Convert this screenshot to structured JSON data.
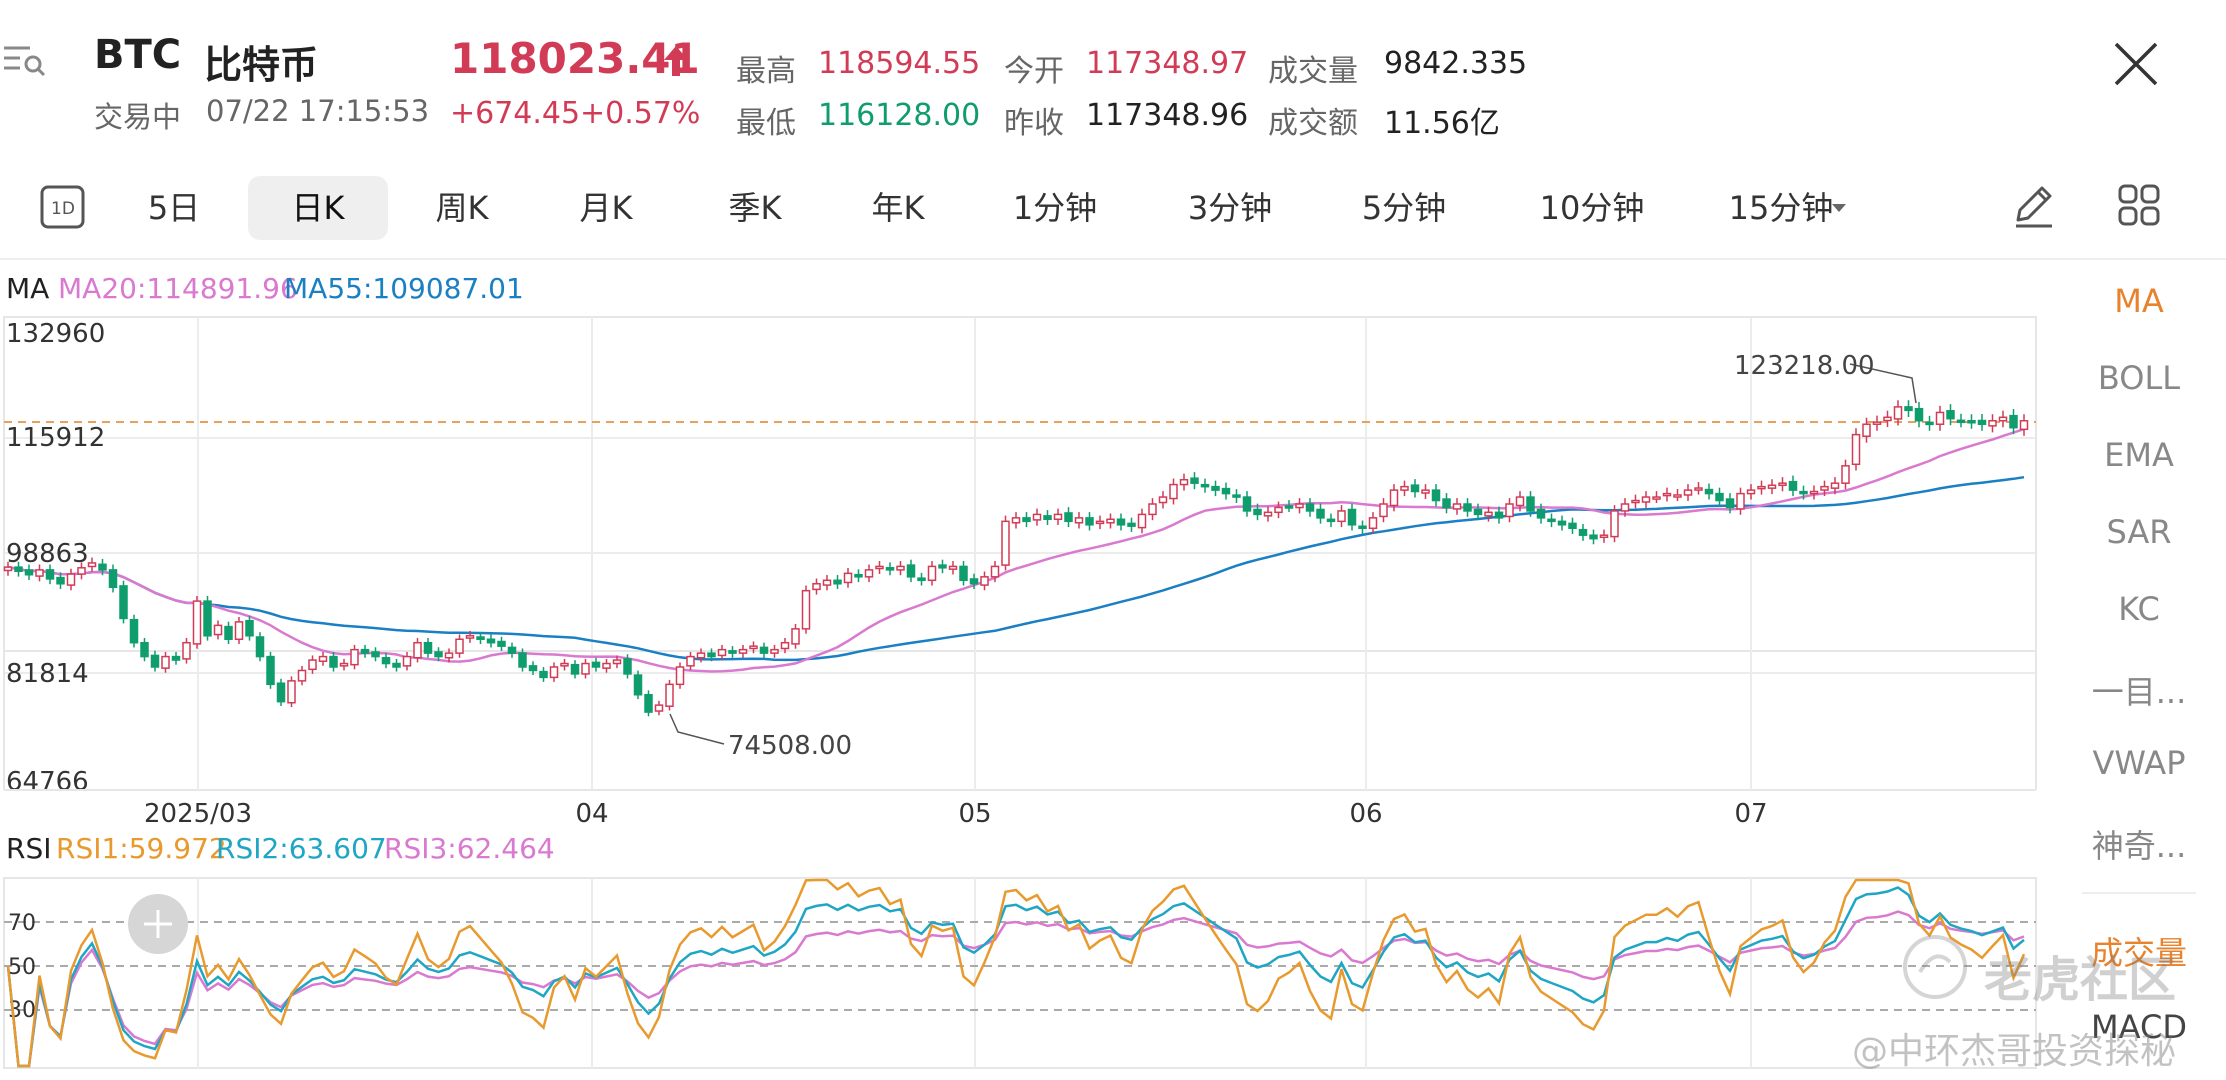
{
  "header": {
    "symbol": "BTC",
    "name": "比特币",
    "status": "交易中",
    "datetime": "07/22 17:15:53",
    "price": "118023.41",
    "change": "+674.45",
    "change_pct": "+0.57%",
    "stats": {
      "high_label": "最高",
      "high": "118594.55",
      "low_label": "最低",
      "low": "116128.00",
      "open_label": "今开",
      "open": "117348.97",
      "prev_close_label": "昨收",
      "prev_close": "117348.96",
      "volume_label": "成交量",
      "volume": "9842.335",
      "turnover_label": "成交额",
      "turnover": "11.56亿"
    }
  },
  "periods": {
    "icon_label": "1D",
    "items": [
      "5日",
      "日K",
      "周K",
      "月K",
      "季K",
      "年K",
      "1分钟",
      "3分钟",
      "5分钟",
      "10分钟",
      "15分钟"
    ],
    "active": "日K"
  },
  "indicators_side": {
    "items": [
      "MA",
      "BOLL",
      "EMA",
      "SAR",
      "KC",
      "一目...",
      "VWAP",
      "神奇...",
      "成交量",
      "MACD"
    ],
    "active": "MA"
  },
  "colors": {
    "up": "#d23b55",
    "down": "#0f9d6e",
    "ma20": "#d979d0",
    "ma55": "#1b7fc4",
    "rsi1": "#e89a2e",
    "rsi2": "#1fa6c4",
    "rsi3": "#d979d0",
    "side_active": "#e8832d"
  },
  "main_chart": {
    "legend_title": "MA",
    "ma20_label": "MA20:114891.96",
    "ma55_label": "MA55:109087.01",
    "y_ticks": [
      "132960",
      "115912",
      "98863",
      "81814",
      "64766"
    ],
    "x_labels": [
      "2025/03",
      "04",
      "05",
      "06",
      "07"
    ],
    "high_annotation": "123218.00",
    "low_annotation": "74508.00"
  },
  "rsi_chart": {
    "legend_title": "RSI",
    "rsi1_label": "RSI1:59.972",
    "rsi2_label": "RSI2:63.607",
    "rsi3_label": "RSI3:62.464",
    "y_ticks": [
      "70",
      "50",
      "30"
    ]
  },
  "watermark": {
    "brand": "老虎社区",
    "author": "@中环杰哥投资探秘"
  },
  "chart_data": {
    "type": "candlestick",
    "title": "",
    "ylim": [
      64766,
      132960
    ],
    "close_series": [
      96900,
      96300,
      95800,
      96500,
      95200,
      94500,
      95900,
      96800,
      97500,
      96500,
      94000,
      89500,
      86000,
      84000,
      82500,
      84000,
      83500,
      86000,
      92000,
      87000,
      88500,
      86500,
      89000,
      87000,
      84000,
      80000,
      77500,
      80500,
      82000,
      83500,
      84000,
      82500,
      83000,
      85000,
      84500,
      84000,
      83000,
      82500,
      84000,
      86000,
      84500,
      84000,
      84500,
      86500,
      87000,
      86500,
      86000,
      85500,
      84500,
      82500,
      82000,
      81000,
      82500,
      83000,
      81500,
      83000,
      82500,
      83000,
      83500,
      81500,
      78500,
      76000,
      77000,
      80000,
      82500,
      84000,
      84500,
      84000,
      85000,
      84500,
      85000,
      85500,
      84500,
      85000,
      86000,
      88000,
      93500,
      94500,
      95000,
      94500,
      96000,
      95500,
      96500,
      97000,
      96500,
      97000,
      95500,
      95000,
      97000,
      96800,
      97000,
      95000,
      94500,
      95500,
      97000,
      103500,
      104000,
      103500,
      104500,
      103800,
      104500,
      103500,
      104000,
      103000,
      103500,
      103800,
      103000,
      102800,
      104500,
      106000,
      107000,
      108800,
      109500,
      109000,
      108500,
      108000,
      107500,
      107000,
      105000,
      104500,
      104800,
      105500,
      105700,
      106000,
      105000,
      104000,
      103500,
      105000,
      103000,
      102500,
      104000,
      106000,
      108000,
      108500,
      107800,
      108000,
      106500,
      105500,
      106000,
      105000,
      104500,
      104800,
      104000,
      106000,
      107000,
      105000,
      104000,
      103500,
      103000,
      102500,
      101500,
      101000,
      101500,
      105000,
      106000,
      106500,
      107000,
      107000,
      107500,
      107300,
      108000,
      108300,
      107500,
      106500,
      105500,
      107500,
      108000,
      108500,
      108700,
      109000,
      108000,
      107500,
      107800,
      108500,
      109000,
      111500,
      116000,
      117500,
      117800,
      118500,
      120000,
      119500,
      118000,
      117500,
      119200,
      118300,
      118000,
      117800,
      117500,
      118000,
      118500,
      117000,
      118000
    ],
    "ma20_last": 114891.96,
    "ma55_last": 109087.01,
    "annotations": [
      {
        "label": "123218.00",
        "type": "max"
      },
      {
        "label": "74508.00",
        "type": "min"
      }
    ],
    "rsi": {
      "rsi1_last": 59.972,
      "rsi2_last": 63.607,
      "rsi3_last": 62.464
    },
    "xlabel": "",
    "ylabel": ""
  }
}
